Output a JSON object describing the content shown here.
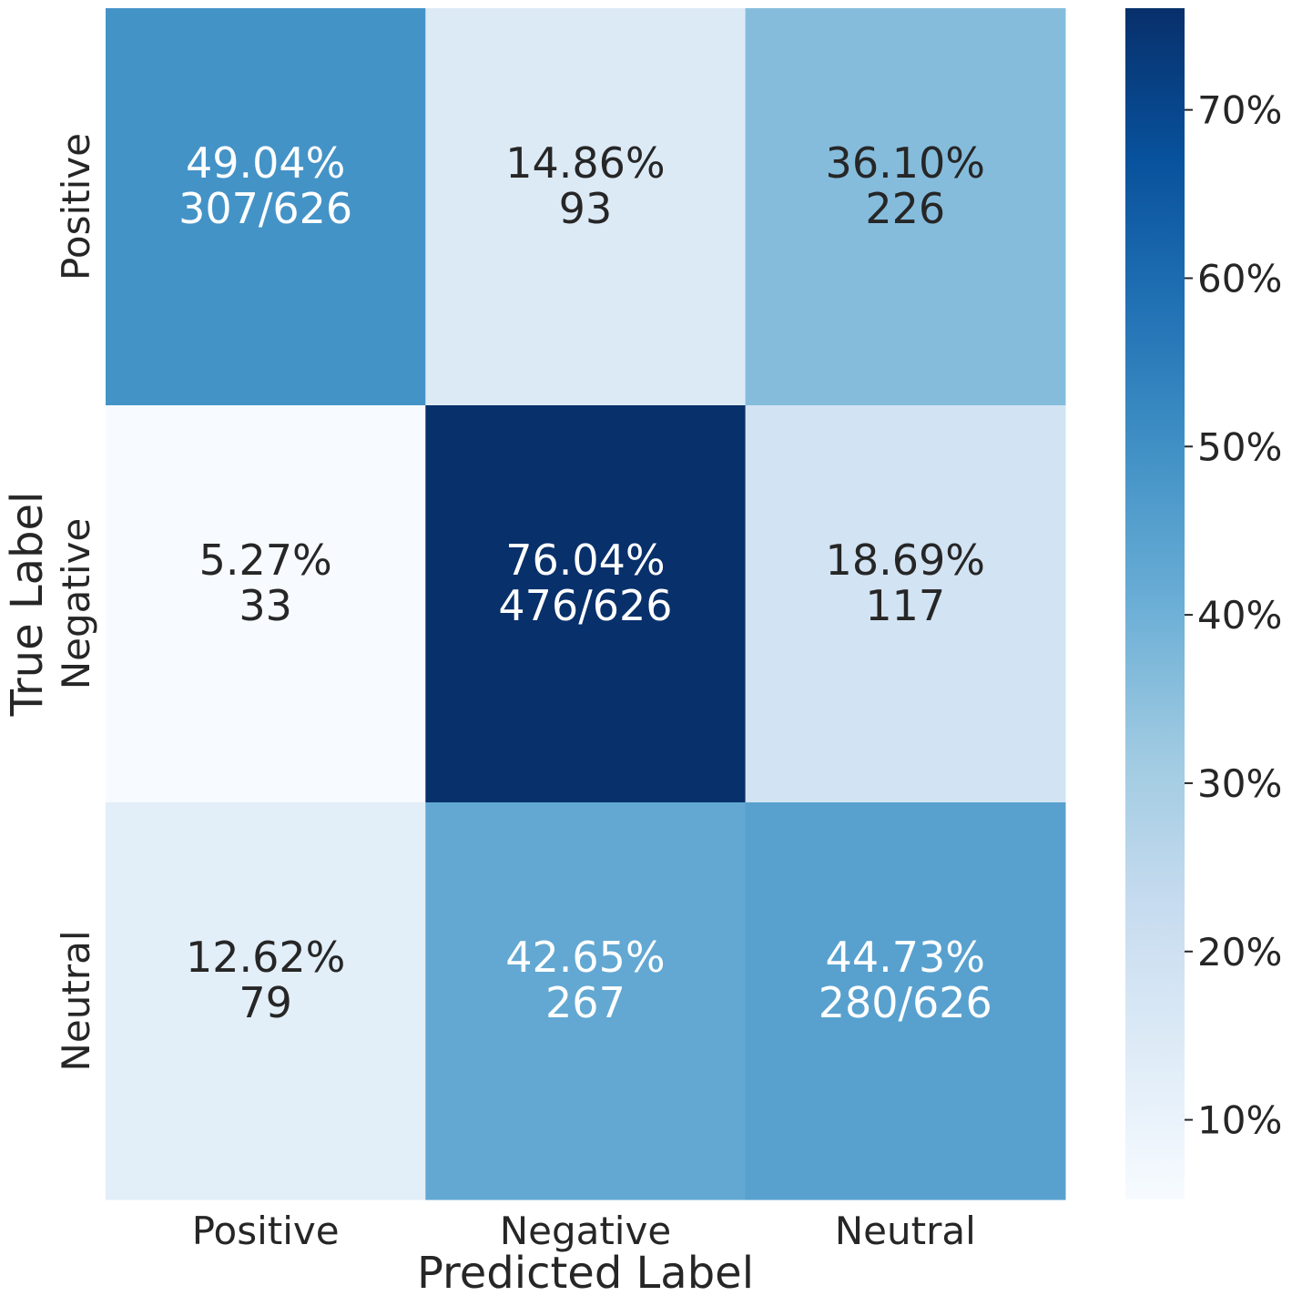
{
  "chart_data": {
    "type": "heatmap",
    "title": "",
    "xlabel": "Predicted Label",
    "ylabel": "True Label",
    "x_categories": [
      "Positive",
      "Negative",
      "Neutral"
    ],
    "y_categories": [
      "Positive",
      "Negative",
      "Neutral"
    ],
    "cells": [
      [
        {
          "value": 49.04,
          "pct_label": "49.04%",
          "count_label": "307/626"
        },
        {
          "value": 14.86,
          "pct_label": "14.86%",
          "count_label": "93"
        },
        {
          "value": 36.1,
          "pct_label": "36.10%",
          "count_label": "226"
        }
      ],
      [
        {
          "value": 5.27,
          "pct_label": "5.27%",
          "count_label": "33"
        },
        {
          "value": 76.04,
          "pct_label": "76.04%",
          "count_label": "476/626"
        },
        {
          "value": 18.69,
          "pct_label": "18.69%",
          "count_label": "117"
        }
      ],
      [
        {
          "value": 12.62,
          "pct_label": "12.62%",
          "count_label": "79"
        },
        {
          "value": 42.65,
          "pct_label": "42.65%",
          "count_label": "267"
        },
        {
          "value": 44.73,
          "pct_label": "44.73%",
          "count_label": "280/626"
        }
      ]
    ],
    "colorbar": {
      "colormap": "Blues",
      "range": [
        5.27,
        76.04
      ],
      "ticks": [
        10,
        20,
        30,
        40,
        50,
        60,
        70
      ],
      "tick_labels": [
        "10%",
        "20%",
        "30%",
        "40%",
        "50%",
        "60%",
        "70%"
      ]
    },
    "text_colors": {
      "light": "#ffffff",
      "dark": "#262626"
    }
  }
}
